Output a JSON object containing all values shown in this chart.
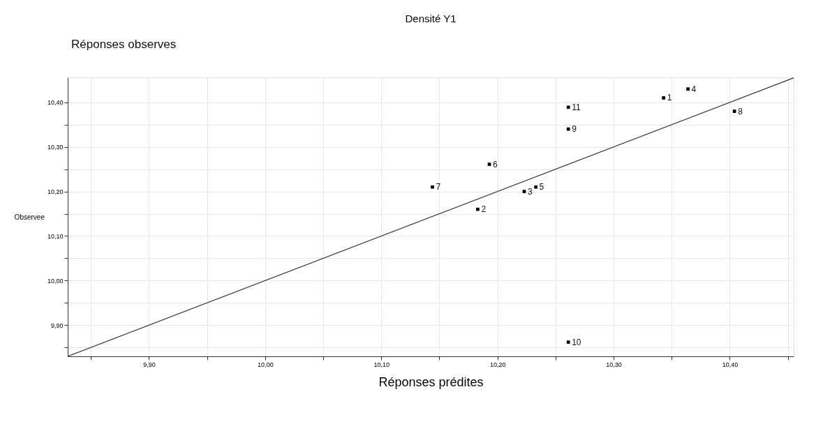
{
  "chart_data": {
    "type": "scatter",
    "title": "Densité Y1",
    "xlabel": "Réponses prédites",
    "ylabel": "Observee",
    "x": [
      10.343,
      10.183,
      10.223,
      10.364,
      10.233,
      10.193,
      10.144,
      10.404,
      10.261,
      10.261,
      10.261
    ],
    "series": [
      {
        "color": "#000000",
        "marker": "square",
        "values": [
          10.41,
          10.16,
          10.2,
          10.43,
          10.21,
          10.261,
          10.21,
          10.38,
          10.34,
          9.862,
          10.389
        ]
      },
      {
        "type": "line",
        "color": "#333333",
        "x": [
          9.83,
          10.455
        ],
        "values": [
          9.83,
          10.455
        ],
        "line_style": "solid"
      }
    ],
    "annotations": [
      "Réponses observes",
      {
        "text": "1",
        "x": 10.343,
        "y": 10.41
      },
      {
        "text": "2",
        "x": 10.183,
        "y": 10.16
      },
      {
        "text": "3",
        "x": 10.223,
        "y": 10.2
      },
      {
        "text": "4",
        "x": 10.364,
        "y": 10.43
      },
      {
        "text": "5",
        "x": 10.233,
        "y": 10.21
      },
      {
        "text": "6",
        "x": 10.193,
        "y": 10.261
      },
      {
        "text": "7",
        "x": 10.144,
        "y": 10.21
      },
      {
        "text": "8",
        "x": 10.404,
        "y": 10.38
      },
      {
        "text": "9",
        "x": 10.261,
        "y": 10.34
      },
      {
        "text": "10",
        "x": 10.261,
        "y": 9.862
      },
      {
        "text": "11",
        "x": 10.261,
        "y": 10.389
      }
    ],
    "xlim": [
      9.83,
      10.455
    ],
    "ylim": [
      9.83,
      10.456
    ],
    "xticks": [
      {
        "value": 9.85,
        "label": null
      },
      {
        "value": 9.9,
        "label": "9,90"
      },
      {
        "value": 9.95,
        "label": null
      },
      {
        "value": 10.0,
        "label": "10,00"
      },
      {
        "value": 10.05,
        "label": null
      },
      {
        "value": 10.1,
        "label": "10,10"
      },
      {
        "value": 10.15,
        "label": null
      },
      {
        "value": 10.2,
        "label": "10,20"
      },
      {
        "value": 10.25,
        "label": null
      },
      {
        "value": 10.3,
        "label": "10,30"
      },
      {
        "value": 10.35,
        "label": null
      },
      {
        "value": 10.4,
        "label": "10,40"
      },
      {
        "value": 10.45,
        "label": null
      }
    ],
    "yticks": [
      {
        "value": 9.85,
        "label": null
      },
      {
        "value": 9.9,
        "label": "9,90"
      },
      {
        "value": 9.95,
        "label": null
      },
      {
        "value": 10.0,
        "label": "10,00"
      },
      {
        "value": 10.05,
        "label": null
      },
      {
        "value": 10.1,
        "label": "10,10"
      },
      {
        "value": 10.15,
        "label": null
      },
      {
        "value": 10.2,
        "label": "10,20"
      },
      {
        "value": 10.25,
        "label": null
      },
      {
        "value": 10.3,
        "label": "10,30"
      },
      {
        "value": 10.35,
        "label": null
      },
      {
        "value": 10.4,
        "label": "10,40"
      }
    ],
    "grid": true
  }
}
